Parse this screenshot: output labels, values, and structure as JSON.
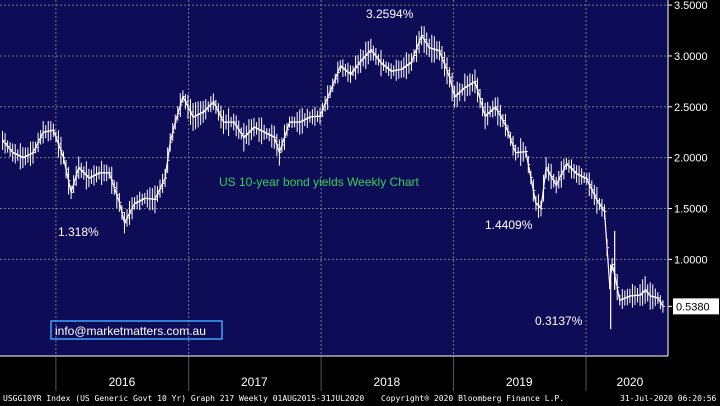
{
  "chart_data": {
    "type": "line",
    "title": "US 10-year bond yields Weekly Chart",
    "xlabel": "",
    "ylabel": "",
    "x_tick_labels": [
      "2016",
      "2017",
      "2018",
      "2019",
      "2020"
    ],
    "y_tick_labels": [
      "0.5380",
      "1.0000",
      "1.5000",
      "2.0000",
      "2.5000",
      "3.0000",
      "3.5000"
    ],
    "ylim": [
      0.05,
      3.55
    ],
    "grid": true,
    "last_value_label": "0.5380",
    "annotations": [
      {
        "text": "1.318%",
        "x": "2016-02-08",
        "y": 1.318
      },
      {
        "text": "3.2594%",
        "x": "2018-10-08",
        "y": 3.2594
      },
      {
        "text": "1.4409%",
        "x": "2019-01-02",
        "y": 1.4409
      },
      {
        "text": "0.3137%",
        "x": "2020-03-09",
        "y": 0.3137
      }
    ],
    "series": [
      {
        "name": "",
        "x": [
          "2015-08-07",
          "2015-09-04",
          "2015-10-02",
          "2015-10-30",
          "2015-11-27",
          "2015-12-25",
          "2016-01-22",
          "2016-02-12",
          "2016-03-04",
          "2016-04-01",
          "2016-04-29",
          "2016-05-27",
          "2016-06-24",
          "2016-07-08",
          "2016-08-05",
          "2016-09-02",
          "2016-09-30",
          "2016-10-28",
          "2016-11-11",
          "2016-11-25",
          "2016-12-16",
          "2017-01-13",
          "2017-02-10",
          "2017-03-10",
          "2017-04-07",
          "2017-05-05",
          "2017-06-02",
          "2017-06-30",
          "2017-07-28",
          "2017-08-25",
          "2017-09-08",
          "2017-10-06",
          "2017-11-03",
          "2017-12-01",
          "2017-12-29",
          "2018-01-26",
          "2018-02-23",
          "2018-03-23",
          "2018-04-20",
          "2018-05-18",
          "2018-06-15",
          "2018-07-13",
          "2018-08-10",
          "2018-09-07",
          "2018-10-05",
          "2018-10-26",
          "2018-11-23",
          "2018-12-21",
          "2019-01-04",
          "2019-02-01",
          "2019-03-01",
          "2019-03-29",
          "2019-04-26",
          "2019-05-24",
          "2019-06-21",
          "2019-07-19",
          "2019-08-16",
          "2019-08-30",
          "2019-09-13",
          "2019-10-11",
          "2019-11-08",
          "2019-12-06",
          "2020-01-03",
          "2020-01-31",
          "2020-02-21",
          "2020-03-06",
          "2020-03-13",
          "2020-03-20",
          "2020-04-03",
          "2020-05-01",
          "2020-05-29",
          "2020-06-12",
          "2020-06-26",
          "2020-07-17",
          "2020-07-31"
        ],
        "values": [
          2.17,
          2.05,
          2.0,
          2.05,
          2.25,
          2.27,
          2.0,
          1.66,
          1.9,
          1.8,
          1.85,
          1.85,
          1.56,
          1.36,
          1.55,
          1.6,
          1.59,
          1.8,
          2.15,
          2.35,
          2.6,
          2.4,
          2.45,
          2.55,
          2.35,
          2.35,
          2.2,
          2.3,
          2.25,
          2.2,
          2.05,
          2.35,
          2.35,
          2.4,
          2.41,
          2.65,
          2.9,
          2.82,
          2.95,
          3.06,
          2.93,
          2.85,
          2.87,
          2.94,
          3.2,
          3.08,
          3.05,
          2.79,
          2.6,
          2.69,
          2.75,
          2.41,
          2.5,
          2.32,
          2.05,
          2.06,
          1.55,
          1.5,
          1.9,
          1.73,
          1.94,
          1.84,
          1.79,
          1.58,
          1.47,
          0.76,
          0.95,
          0.85,
          0.6,
          0.64,
          0.65,
          0.7,
          0.64,
          0.62,
          0.538
        ]
      }
    ]
  },
  "watermark": "info@marketmatters.com.au",
  "footer": {
    "left": "USGG10YR Index (US Generic Govt 10 Yr) Graph 217  Weekly 01AUG2015-31JUL2020",
    "middle": "Copyright® 2020 Bloomberg Finance L.P.",
    "right": "31-Jul-2020 06:20:56"
  },
  "colors": {
    "plot_bg": "#0e0c57",
    "axis_bg": "#000000",
    "grid": "#7a7a7a",
    "line": "#ffffff",
    "title": "#2fd35a",
    "text": "#ffffff",
    "watermark_border": "#3ea4ff"
  }
}
